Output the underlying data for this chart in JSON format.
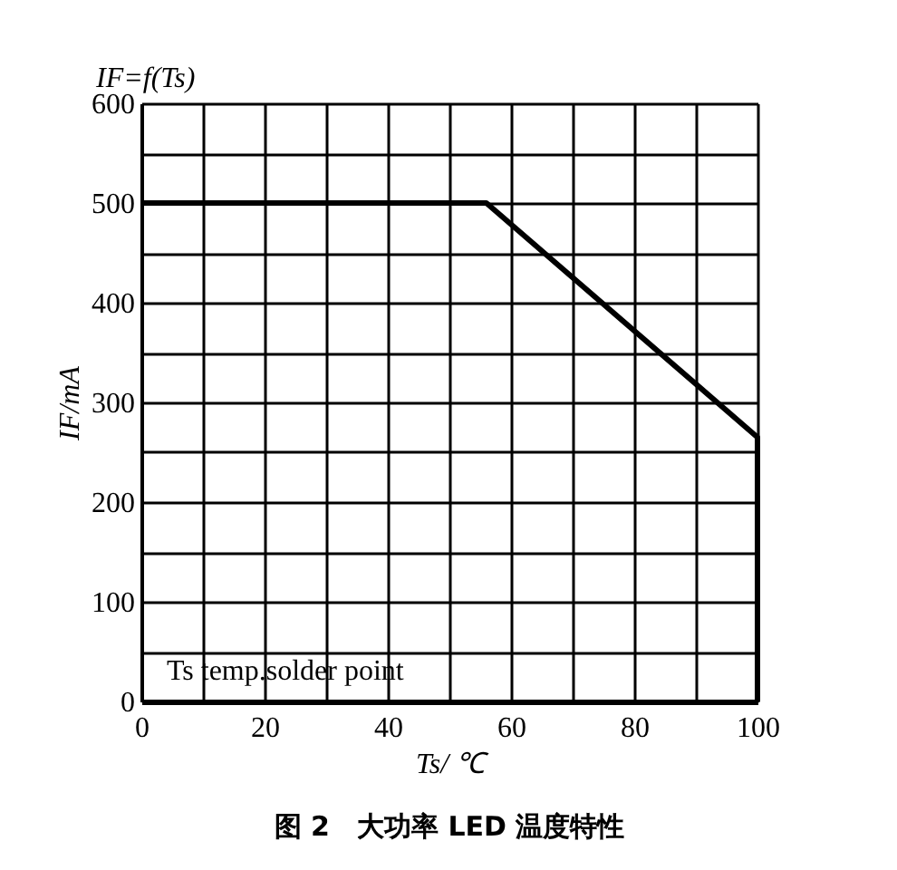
{
  "chart_data": {
    "type": "line",
    "title": "图 2　大功率 LED 温度特性",
    "xlabel": "Ts/ ℃",
    "ylabel": "IF/mA",
    "annotations": [
      "IF=f(Ts)",
      "Ts temp.solder point"
    ],
    "x": [
      0,
      56,
      100,
      100
    ],
    "series": [
      {
        "color": "#000000",
        "values": [
          500,
          500,
          265,
          0
        ]
      }
    ],
    "xlim": [
      0,
      100
    ],
    "ylim": [
      0,
      600
    ],
    "xticks": [
      0,
      {
        "value": 10,
        "label": null
      },
      20,
      {
        "value": 30,
        "label": null
      },
      40,
      {
        "value": 50,
        "label": null
      },
      60,
      {
        "value": 70,
        "label": null
      },
      80,
      {
        "value": 90,
        "label": null
      },
      100
    ],
    "yticks": [
      0,
      {
        "value": 50,
        "label": null
      },
      100,
      {
        "value": 150,
        "label": null
      },
      200,
      {
        "value": 250,
        "label": null
      },
      300,
      {
        "value": 350,
        "label": null
      },
      400,
      {
        "value": 450,
        "label": null
      },
      500,
      {
        "value": 550,
        "label": null
      },
      600
    ],
    "grid": true,
    "marker": "none",
    "line_style": "solid"
  }
}
